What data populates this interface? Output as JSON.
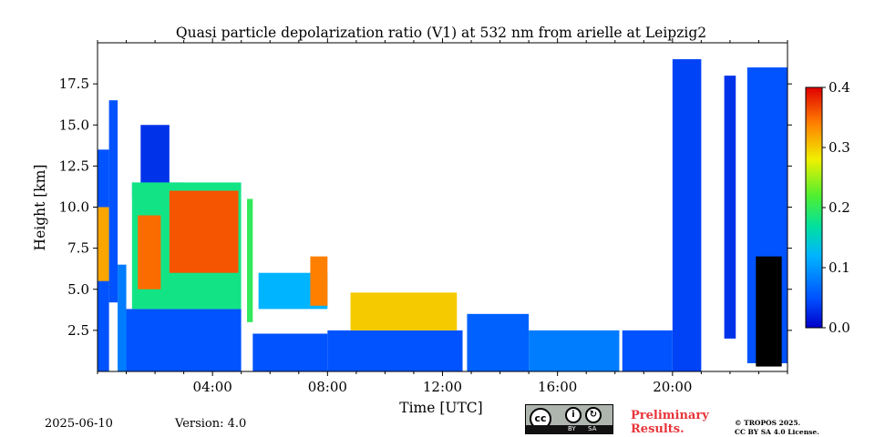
{
  "chart_data": {
    "type": "heatmap",
    "title": "Quasi particle depolarization ratio (V1) at 532 nm from arielle at Leipzig2",
    "xlabel": "Time [UTC]",
    "ylabel": "Height [km]",
    "x_range_hours": [
      0,
      24
    ],
    "ylim_km": [
      0,
      20
    ],
    "x_ticks": [
      {
        "value": 4,
        "label": "04:00"
      },
      {
        "value": 8,
        "label": "08:00"
      },
      {
        "value": 12,
        "label": "12:00"
      },
      {
        "value": 16,
        "label": "16:00"
      },
      {
        "value": 20,
        "label": "20:00"
      }
    ],
    "y_ticks": [
      {
        "value": 2.5,
        "label": "2.5"
      },
      {
        "value": 5.0,
        "label": "5.0"
      },
      {
        "value": 7.5,
        "label": "7.5"
      },
      {
        "value": 10.0,
        "label": "10.0"
      },
      {
        "value": 12.5,
        "label": "12.5"
      },
      {
        "value": 15.0,
        "label": "15.0"
      },
      {
        "value": 17.5,
        "label": "17.5"
      }
    ],
    "colorbar": {
      "min": 0.0,
      "max": 0.4,
      "colormap": "jet",
      "ticks": [
        {
          "value": 0.0,
          "label": "0.0"
        },
        {
          "value": 0.1,
          "label": "0.1"
        },
        {
          "value": 0.2,
          "label": "0.2"
        },
        {
          "value": 0.3,
          "label": "0.3"
        },
        {
          "value": 0.4,
          "label": "0.4"
        }
      ]
    },
    "data_gaps_hours": [
      [
        5.0,
        5.2
      ],
      [
        12.7,
        12.85
      ],
      [
        18.15,
        18.25
      ]
    ],
    "regions": [
      {
        "t0": 0.0,
        "t1": 0.4,
        "h0": 0.0,
        "h1": 13.5,
        "value": 0.05
      },
      {
        "t0": 0.0,
        "t1": 0.4,
        "h0": 5.5,
        "h1": 10.0,
        "value": 0.32
      },
      {
        "t0": 0.4,
        "t1": 0.7,
        "h0": 4.2,
        "h1": 16.5,
        "value": 0.05
      },
      {
        "t0": 0.7,
        "t1": 1.0,
        "h0": 0.0,
        "h1": 6.5,
        "value": 0.08
      },
      {
        "t0": 1.0,
        "t1": 5.0,
        "h0": 0.0,
        "h1": 3.8,
        "value": 0.05
      },
      {
        "t0": 1.5,
        "t1": 2.5,
        "h0": 9.0,
        "h1": 15.0,
        "value": 0.03
      },
      {
        "t0": 1.2,
        "t1": 3.0,
        "h0": 10.5,
        "h1": 11.5,
        "value": 0.09
      },
      {
        "t0": 1.2,
        "t1": 5.0,
        "h0": 3.8,
        "h1": 11.5,
        "value": 0.18
      },
      {
        "t0": 1.4,
        "t1": 2.2,
        "h0": 5.0,
        "h1": 9.5,
        "value": 0.35
      },
      {
        "t0": 2.5,
        "t1": 4.9,
        "h0": 6.0,
        "h1": 11.0,
        "value": 0.36
      },
      {
        "t0": 5.2,
        "t1": 5.4,
        "h0": 3.0,
        "h1": 10.5,
        "value": 0.2
      },
      {
        "t0": 5.4,
        "t1": 8.0,
        "h0": 0.0,
        "h1": 2.3,
        "value": 0.05
      },
      {
        "t0": 5.6,
        "t1": 8.0,
        "h0": 3.8,
        "h1": 6.0,
        "value": 0.12
      },
      {
        "t0": 7.4,
        "t1": 8.0,
        "h0": 4.0,
        "h1": 7.0,
        "value": 0.34
      },
      {
        "t0": 8.0,
        "t1": 12.7,
        "h0": 0.0,
        "h1": 2.5,
        "value": 0.05
      },
      {
        "t0": 8.8,
        "t1": 12.5,
        "h0": 2.5,
        "h1": 4.8,
        "value": 0.3
      },
      {
        "t0": 12.85,
        "t1": 15.0,
        "h0": 0.0,
        "h1": 3.5,
        "value": 0.06
      },
      {
        "t0": 15.0,
        "t1": 18.15,
        "h0": 0.0,
        "h1": 2.5,
        "value": 0.08
      },
      {
        "t0": 18.25,
        "t1": 20.0,
        "h0": 0.0,
        "h1": 2.5,
        "value": 0.05
      },
      {
        "t0": 20.0,
        "t1": 21.0,
        "h0": 0.0,
        "h1": 19.0,
        "value": 0.04
      },
      {
        "t0": 21.8,
        "t1": 22.2,
        "h0": 2.0,
        "h1": 18.0,
        "value": 0.03
      },
      {
        "t0": 22.6,
        "t1": 24.0,
        "h0": 0.5,
        "h1": 18.5,
        "value": 0.05
      },
      {
        "t0": 22.9,
        "t1": 23.8,
        "h0": 0.3,
        "h1": 7.0,
        "value": null
      }
    ]
  },
  "footer": {
    "date": "2025-06-10",
    "version": "Version: 4.0",
    "preliminary_line1": "Preliminary",
    "preliminary_line2": "Results.",
    "copyright_line1": "© TROPOS 2025.",
    "copyright_line2": "CC BY SA 4.0 License.",
    "cc_badge_text": "cc",
    "cc_by": "BY",
    "cc_sa": "SA"
  }
}
